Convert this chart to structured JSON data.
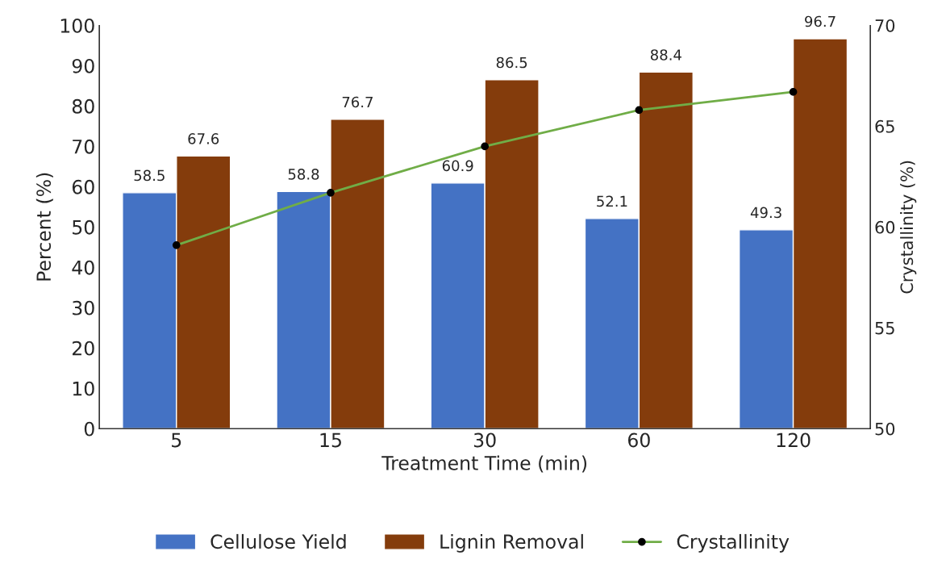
{
  "chart_data": {
    "type": "bar",
    "xlabel": "Treatment Time (min)",
    "ylabel": "Percent (%)",
    "y2label": "Crystallinity (%)",
    "categories": [
      "5",
      "15",
      "30",
      "60",
      "120"
    ],
    "series": [
      {
        "name": "Cellulose Yield",
        "color": "#4472c4",
        "values": [
          58.5,
          58.8,
          60.9,
          52.1,
          49.3
        ],
        "value_labels": [
          "58.5",
          "58.8",
          "60.9",
          "52.1",
          "49.3"
        ]
      },
      {
        "name": "Lignin Removal",
        "color": "#843c0c",
        "values": [
          67.6,
          76.7,
          86.5,
          88.4,
          96.7
        ],
        "value_labels": [
          "67.6",
          "76.7",
          "86.5",
          "88.4",
          "96.7"
        ]
      },
      {
        "name": "Crystallinity",
        "type": "line",
        "axis": "y2",
        "color": "#70ad47",
        "marker": "circle",
        "values": [
          59.1,
          61.7,
          64.0,
          65.8,
          66.7
        ]
      }
    ],
    "ylim": [
      0,
      100
    ],
    "yticks": [
      0,
      10,
      20,
      30,
      40,
      50,
      60,
      70,
      80,
      90,
      100
    ],
    "y2lim": [
      50,
      70
    ],
    "y2ticks": [
      50,
      55,
      60,
      65,
      70
    ],
    "grid": false,
    "legend": "bottom"
  }
}
